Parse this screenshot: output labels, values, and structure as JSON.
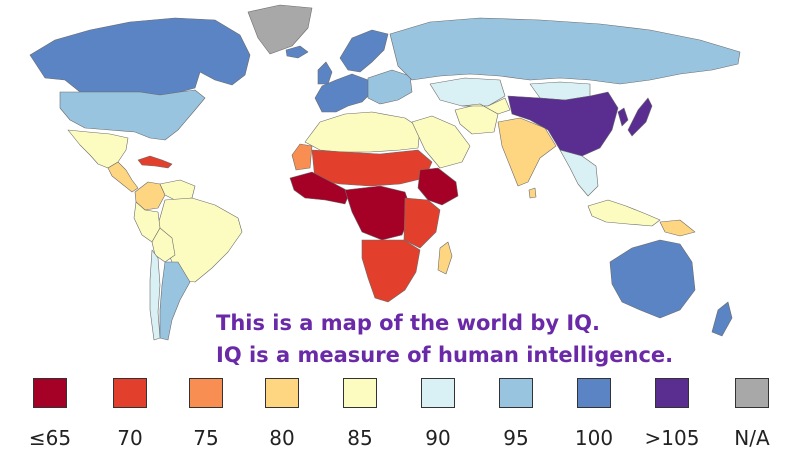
{
  "caption": {
    "line1": "This is a map of the world by IQ.",
    "line2": "IQ is a measure of human intelligence."
  },
  "legend": [
    {
      "label": "≤65",
      "color": "#a50026"
    },
    {
      "label": "70",
      "color": "#e2402c"
    },
    {
      "label": "75",
      "color": "#f98e52"
    },
    {
      "label": "80",
      "color": "#fed581"
    },
    {
      "label": "85",
      "color": "#fcfcc0"
    },
    {
      "label": "90",
      "color": "#d9f0f4"
    },
    {
      "label": "95",
      "color": "#99c4e0"
    },
    {
      "label": "100",
      "color": "#5b84c4"
    },
    {
      "label": ">105",
      "color": "#5a2d91"
    },
    {
      "label": "N/A",
      "color": "#a8a8a8"
    }
  ],
  "regions": [
    {
      "name": "Canada",
      "value": "100"
    },
    {
      "name": "Greenland",
      "value": "N/A"
    },
    {
      "name": "United States",
      "value": "95"
    },
    {
      "name": "Mexico",
      "value": "85"
    },
    {
      "name": "Central America",
      "value": "80"
    },
    {
      "name": "Caribbean",
      "value": "70"
    },
    {
      "name": "Colombia",
      "value": "80"
    },
    {
      "name": "Venezuela",
      "value": "85"
    },
    {
      "name": "Brazil",
      "value": "85"
    },
    {
      "name": "Peru",
      "value": "85"
    },
    {
      "name": "Bolivia",
      "value": "85"
    },
    {
      "name": "Argentina",
      "value": "95"
    },
    {
      "name": "Chile",
      "value": "90"
    },
    {
      "name": "Iceland",
      "value": "100"
    },
    {
      "name": "Scandinavia",
      "value": "100"
    },
    {
      "name": "Western Europe",
      "value": "100"
    },
    {
      "name": "Eastern Europe",
      "value": "95"
    },
    {
      "name": "Russia",
      "value": "95"
    },
    {
      "name": "Kazakhstan",
      "value": "90"
    },
    {
      "name": "Mongolia",
      "value": "90"
    },
    {
      "name": "North Africa",
      "value": "85"
    },
    {
      "name": "West Sahara",
      "value": "75"
    },
    {
      "name": "Sahel",
      "value": "70"
    },
    {
      "name": "West Africa",
      "value": "≤65"
    },
    {
      "name": "Central Africa",
      "value": "≤65"
    },
    {
      "name": "Horn of Africa",
      "value": "≤65"
    },
    {
      "name": "East Africa",
      "value": "70"
    },
    {
      "name": "Southern Africa",
      "value": "70"
    },
    {
      "name": "Madagascar",
      "value": "80"
    },
    {
      "name": "Middle East",
      "value": "85"
    },
    {
      "name": "Iran",
      "value": "85"
    },
    {
      "name": "Central Asia",
      "value": "85"
    },
    {
      "name": "South Asia",
      "value": "80"
    },
    {
      "name": "China",
      "value": ">105"
    },
    {
      "name": "Korea",
      "value": ">105"
    },
    {
      "name": "Japan",
      "value": ">105"
    },
    {
      "name": "Southeast Asia",
      "value": "90"
    },
    {
      "name": "Indonesia",
      "value": "85"
    },
    {
      "name": "Papua New Guinea",
      "value": "80"
    },
    {
      "name": "Australia",
      "value": "100"
    },
    {
      "name": "New Zealand",
      "value": "100"
    },
    {
      "name": "Sri Lanka",
      "value": "80"
    },
    {
      "name": "United Kingdom",
      "value": "100"
    }
  ]
}
